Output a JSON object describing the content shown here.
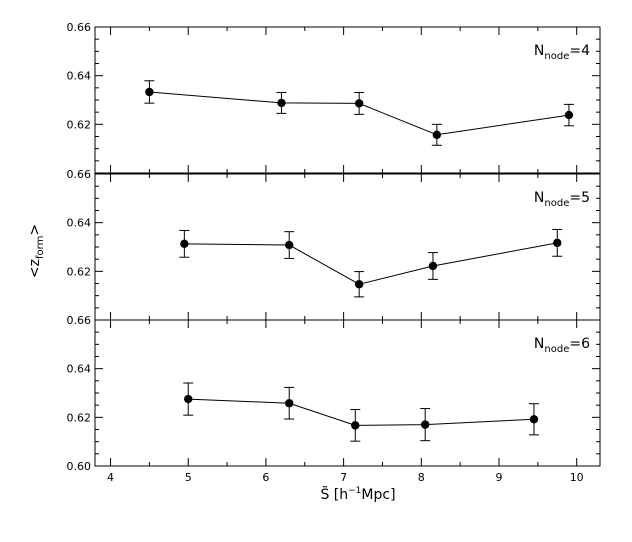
{
  "chart_data": {
    "type": "scatter",
    "mode": "lines+markers with error bars",
    "xlabel": {
      "base": "S̃ [h",
      "sup": "−1",
      "rest": "Mpc]"
    },
    "ylabel": {
      "open": "<z",
      "sub": "form",
      "close": ">"
    },
    "xlim": [
      3.8,
      10.3
    ],
    "x_ticks": [
      4,
      5,
      6,
      7,
      8,
      9,
      10
    ],
    "ylim": [
      0.6,
      0.66
    ],
    "y_ticks": [
      0.6,
      0.62,
      0.64,
      0.66
    ],
    "y_tick_labels_bottom_panel": [
      "0.60",
      "0.62",
      "0.64",
      "0.66"
    ],
    "y_tick_labels_upper_panels": [
      "0.62",
      "0.64",
      "0.66"
    ],
    "grid": false,
    "panels": [
      {
        "label": {
          "base": "N",
          "sub": "node",
          "rest": "=4"
        },
        "x": [
          4.5,
          6.2,
          7.2,
          8.2,
          9.9
        ],
        "y": [
          0.6333,
          0.6288,
          0.6286,
          0.6157,
          0.6238
        ],
        "yerr": [
          0.0046,
          0.0043,
          0.0045,
          0.0043,
          0.0044
        ]
      },
      {
        "label": {
          "base": "N",
          "sub": "node",
          "rest": "=5"
        },
        "x": [
          4.95,
          6.3,
          7.2,
          8.15,
          9.75
        ],
        "y": [
          0.6313,
          0.6308,
          0.6147,
          0.6222,
          0.6317
        ],
        "yerr": [
          0.0055,
          0.0055,
          0.0052,
          0.0055,
          0.0055
        ]
      },
      {
        "label": {
          "base": "N",
          "sub": "node",
          "rest": "=6"
        },
        "x": [
          5.0,
          6.3,
          7.15,
          8.05,
          9.45
        ],
        "y": [
          0.6275,
          0.6258,
          0.6167,
          0.617,
          0.6192
        ],
        "yerr": [
          0.0066,
          0.0065,
          0.0065,
          0.0066,
          0.0064
        ]
      }
    ]
  }
}
